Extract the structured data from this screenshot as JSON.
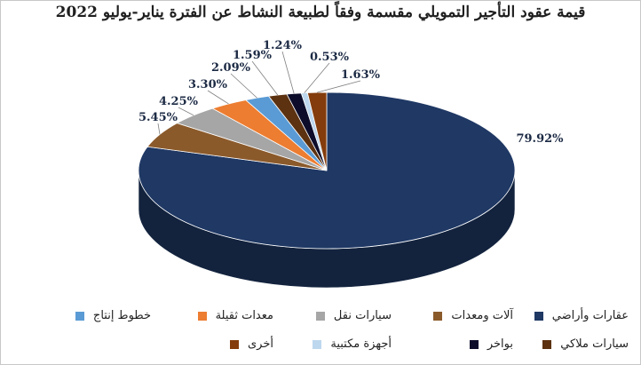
{
  "chart_data": {
    "type": "pie",
    "title": "قيمة عقود التأجير التمويلي مقسمة وفقاً لطبيعة النشاط عن الفترة يناير-يوليو 2022",
    "slices": [
      {
        "name": "عقارات وأراضي",
        "value": 79.92,
        "label": "79.92%",
        "color": "#1f3864"
      },
      {
        "name": "آلات ومعدات",
        "value": 5.45,
        "label": "5.45%",
        "color": "#8b5a2b"
      },
      {
        "name": "سيارات نقل",
        "value": 4.25,
        "label": "4.25%",
        "color": "#a6a6a6"
      },
      {
        "name": "معدات ثقيلة",
        "value": 3.3,
        "label": "3.30%",
        "color": "#ed7d31"
      },
      {
        "name": "خطوط إنتاج",
        "value": 2.09,
        "label": "2.09%",
        "color": "#5b9bd5"
      },
      {
        "name": "سيارات ملاكي",
        "value": 1.59,
        "label": "1.59%",
        "color": "#5c3211"
      },
      {
        "name": "بواخر",
        "value": 1.24,
        "label": "1.24%",
        "color": "#0d0d2b"
      },
      {
        "name": "أجهزة مكتبية",
        "value": 0.53,
        "label": "0.53%",
        "color": "#bdd7ee"
      },
      {
        "name": "أخرى",
        "value": 1.63,
        "label": "1.63%",
        "color": "#843c0c"
      }
    ],
    "legend_position": "bottom"
  }
}
